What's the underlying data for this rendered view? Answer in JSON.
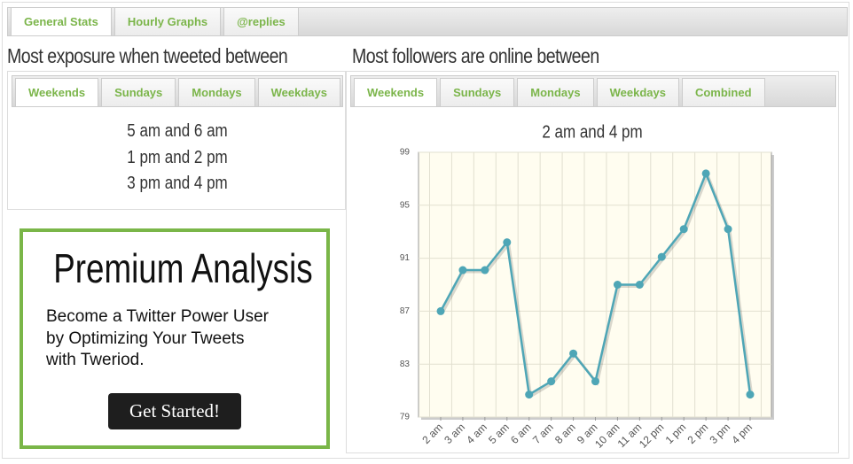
{
  "tabs": [
    "General Stats",
    "Hourly Graphs",
    "@replies"
  ],
  "exposure": {
    "title": "Most exposure when tweeted between",
    "tabs": [
      "Weekends",
      "Sundays",
      "Mondays",
      "Weekdays"
    ],
    "times": [
      "5 am and 6 am",
      "1 pm and 2 pm",
      "3 pm and 4 pm"
    ]
  },
  "premium": {
    "title": "Premium Analysis",
    "lines": [
      "Become a Twitter Power User",
      "by Optimizing Your Tweets",
      "with Tweriod."
    ],
    "button": "Get Started!"
  },
  "followers": {
    "title": "Most followers are online between",
    "tabs": [
      "Weekends",
      "Sundays",
      "Mondays",
      "Weekdays",
      "Combined"
    ]
  },
  "chart_data": {
    "type": "line",
    "title": "2 am and 4 pm",
    "categories": [
      "2 am",
      "3 am",
      "4 am",
      "5 am",
      "6 am",
      "7 am",
      "8 am",
      "9 am",
      "10 am",
      "11 am",
      "12 pm",
      "1 pm",
      "2 pm",
      "3 pm",
      "4 pm"
    ],
    "values": [
      87.0,
      90.1,
      90.1,
      92.2,
      80.7,
      81.7,
      83.8,
      81.7,
      89.0,
      89.0,
      91.1,
      93.2,
      97.4,
      93.2,
      80.7
    ],
    "color": "#4ea6b6",
    "ylim": [
      79,
      99
    ],
    "yticks": [
      79,
      83,
      87,
      91,
      95,
      99
    ],
    "grid": true
  }
}
